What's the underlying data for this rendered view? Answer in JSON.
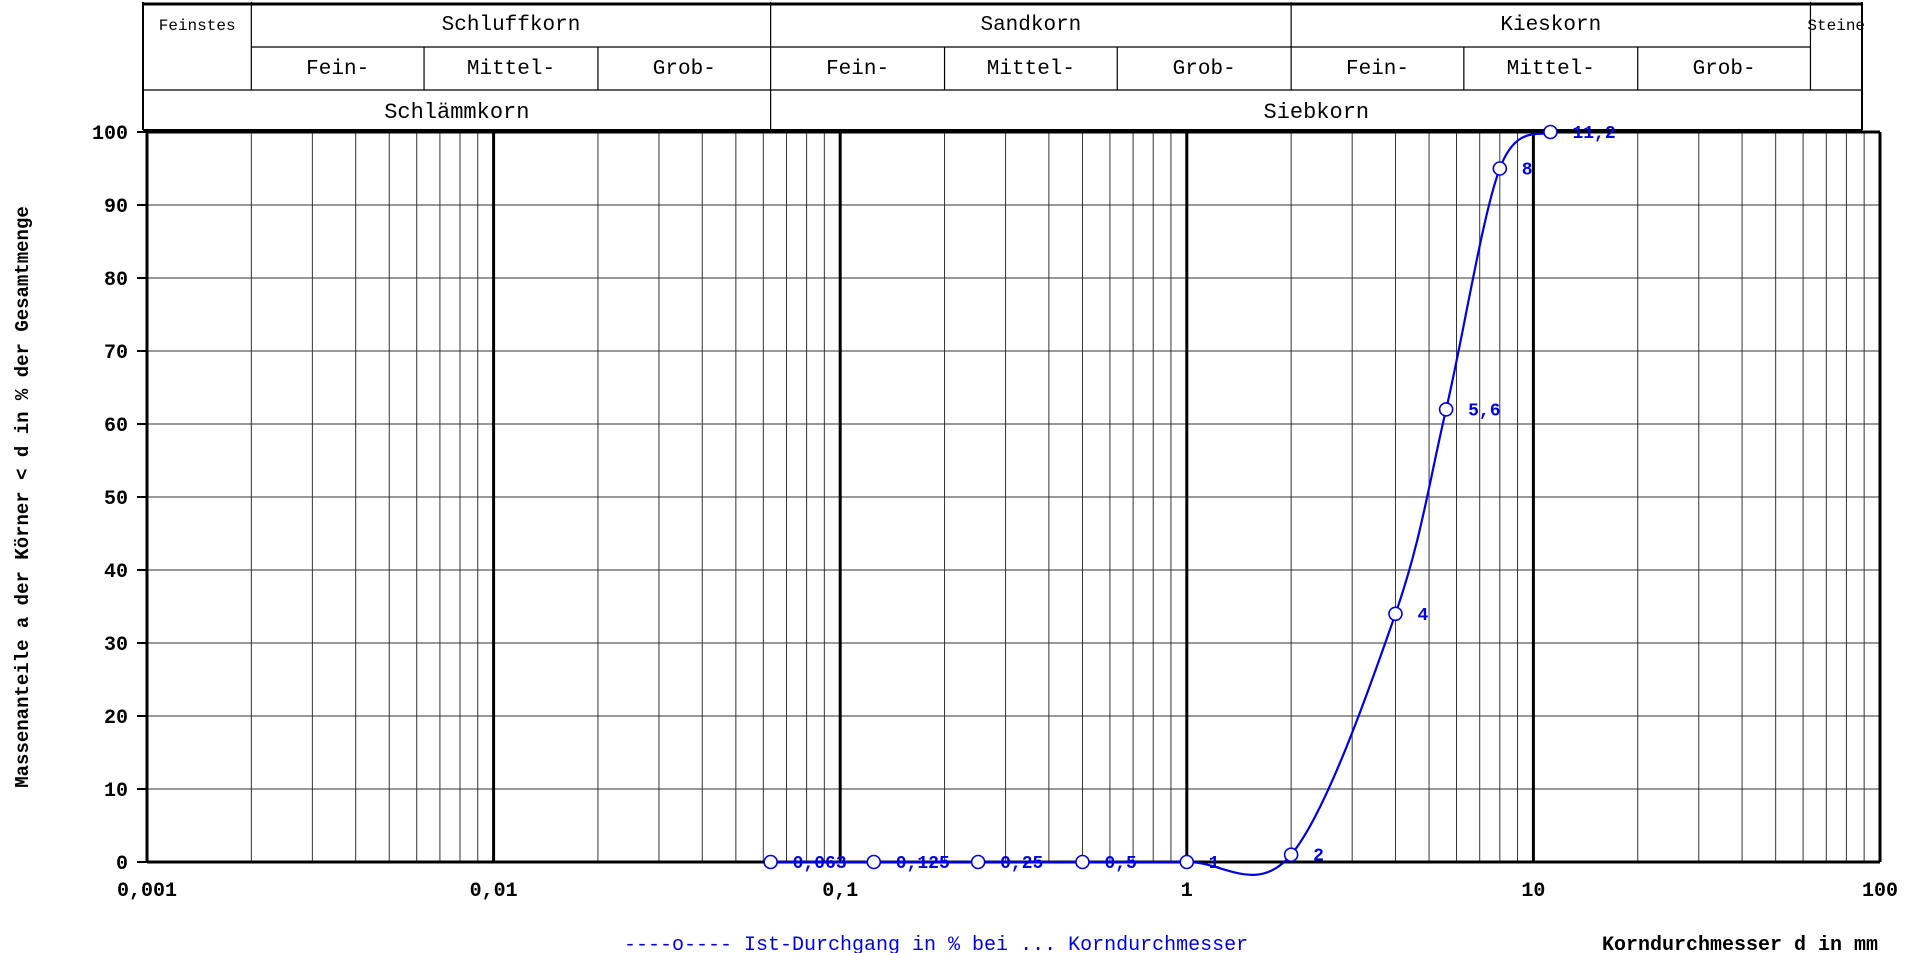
{
  "header": {
    "top_row": [
      "Feinstes",
      "Schluffkorn",
      "Sandkorn",
      "Kieskorn",
      "Steine"
    ],
    "sub_row": [
      "Fein-",
      "Mittel-",
      "Grob-",
      "Fein-",
      "Mittel-",
      "Grob-",
      "Fein-",
      "Mittel-",
      "Grob-"
    ],
    "bottom_row": [
      "Schlämmkorn",
      "Siebkorn"
    ]
  },
  "chart_data": {
    "type": "line",
    "xscale": "log",
    "xlim": [
      0.001,
      100
    ],
    "ylim": [
      0,
      100
    ],
    "grid": true,
    "ylabel": "Massenanteile a der Körner < d in % der Gesamtmenge",
    "xlabel": "Korndurchmesser d in mm",
    "x_tick_labels": [
      "0,001",
      "0,01",
      "0,1",
      "1",
      "10",
      "100"
    ],
    "y_tick_labels": [
      "0",
      "10",
      "20",
      "30",
      "40",
      "50",
      "60",
      "70",
      "80",
      "90",
      "100"
    ],
    "legend": "----o---- Ist-Durchgang in % bei ... Korndurchmesser",
    "legend_position": "bottom",
    "series": [
      {
        "color": "#0000e6",
        "x": [
          0.063,
          0.125,
          0.25,
          0.5,
          1,
          2,
          4,
          5.6,
          8,
          11.2
        ],
        "y": [
          0,
          0,
          0,
          0,
          0,
          1,
          34,
          62,
          95,
          100
        ],
        "point_labels": [
          "0,063",
          "0,125",
          "0,25",
          "0,5",
          "1",
          "2",
          "4",
          "5,6",
          "8",
          "11,2"
        ]
      }
    ]
  }
}
